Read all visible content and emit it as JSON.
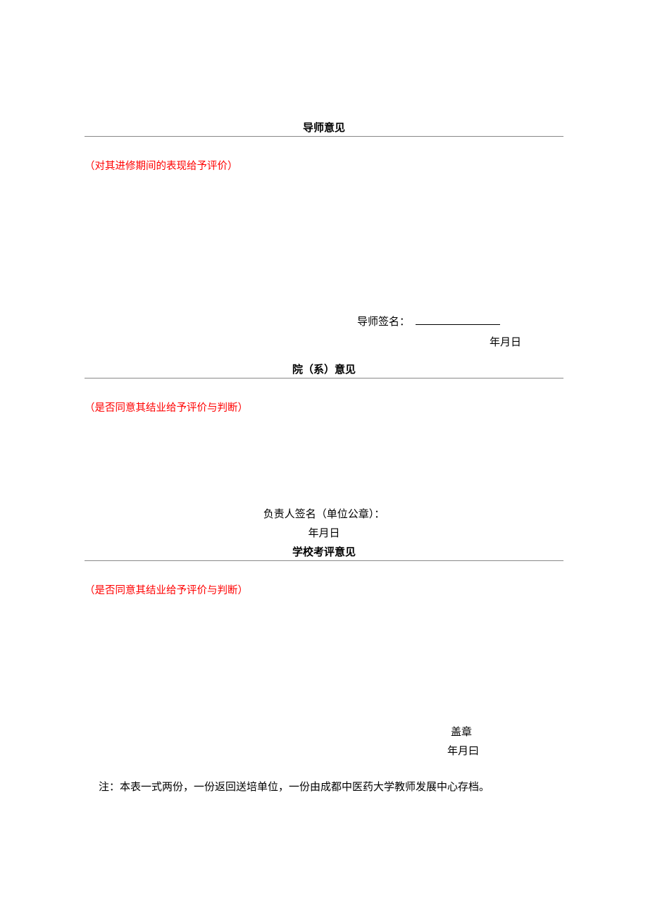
{
  "colors": {
    "text": "#000000",
    "note_text": "#ff0000",
    "rule": "#888888",
    "background": "#ffffff"
  },
  "typography": {
    "font_family": "SimSun",
    "heading_fontsize_pt": 11,
    "body_fontsize_pt": 11,
    "note_fontsize_pt": 11,
    "heading_weight": "bold"
  },
  "section1": {
    "title": "导师意见",
    "note": "（对其进修期间的表现给予评价）",
    "signature_label": "导师签名：",
    "signature_blank": "____________",
    "date": "年月日"
  },
  "section2": {
    "title": "院（系）意见",
    "note": "（是否同意其结业给予评价与判断）",
    "signature_label": "负责人签名（单位公章）：",
    "date": "年月日"
  },
  "section3": {
    "title": "学校考评意见",
    "note": "（是否同意其结业给予评价与判断）",
    "seal_label": "盖章",
    "date": "年月曰"
  },
  "footnote": "注：本表一式两份，一份返回送培单位，一份由成都中医药大学教师发展中心存档。"
}
